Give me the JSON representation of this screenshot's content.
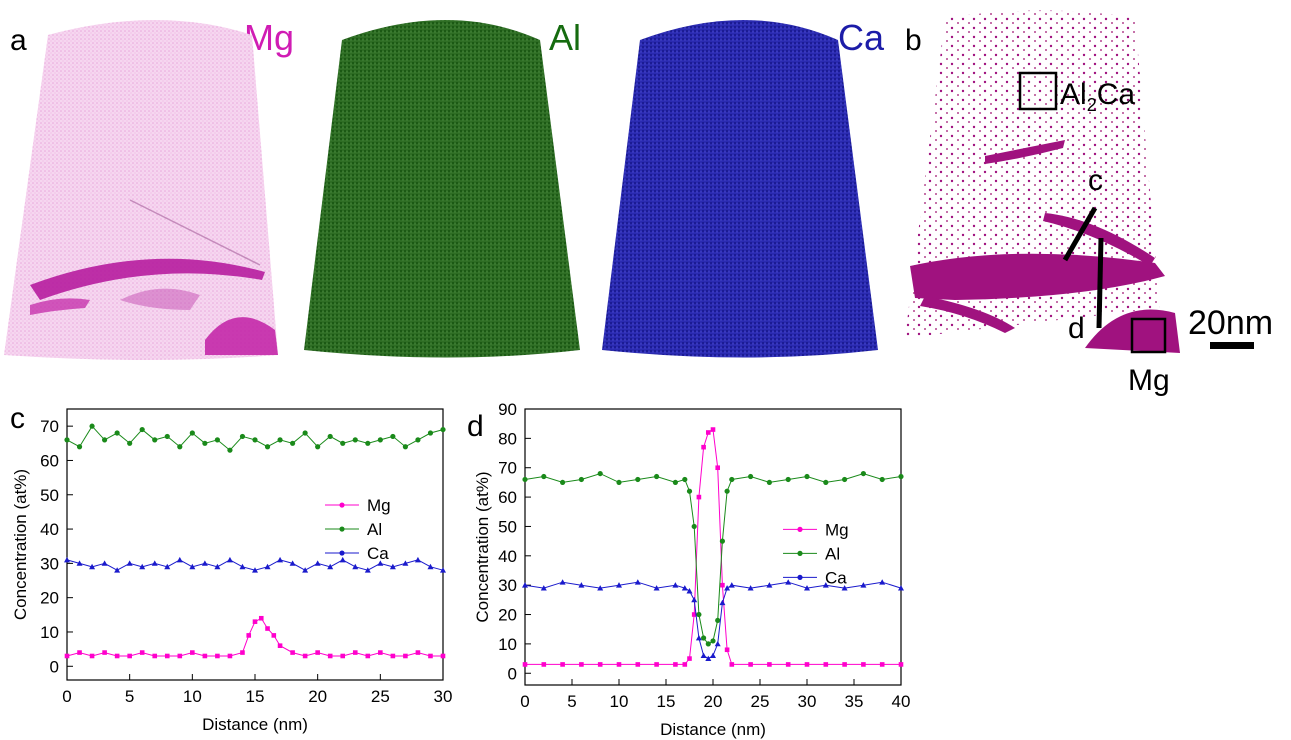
{
  "panel_labels": {
    "a": "a",
    "b": "b",
    "c": "c",
    "d": "d"
  },
  "element_maps": [
    {
      "label": "Mg",
      "color": "#d01cb4"
    },
    {
      "label": "Al",
      "color": "#156b0f"
    },
    {
      "label": "Ca",
      "color": "#1c1ca8"
    }
  ],
  "panel_b": {
    "precipitate_prefix": "Al",
    "precipitate_sub": "2",
    "precipitate_suffix": "Ca",
    "line_c": "c",
    "line_d": "d",
    "scale_bar": "20nm",
    "matrix_label": "Mg",
    "color": "#a0127f"
  },
  "series_colors": {
    "Mg": "#ff00cc",
    "Al": "#1a8a1a",
    "Ca": "#1a1acc"
  },
  "chart_data": [
    {
      "type": "line",
      "panel": "c",
      "xlabel": "Distance (nm)",
      "ylabel": "Concentration (at%)",
      "xlim": [
        0,
        30
      ],
      "ylim": [
        -4,
        75
      ],
      "xticks": [
        0,
        5,
        10,
        15,
        20,
        25,
        30
      ],
      "yticks": [
        0,
        10,
        20,
        30,
        40,
        50,
        60,
        70
      ],
      "legend": "right-middle",
      "series": [
        {
          "name": "Mg",
          "x": [
            0,
            1,
            2,
            3,
            4,
            5,
            6,
            7,
            8,
            9,
            10,
            11,
            12,
            13,
            14,
            14.5,
            15,
            15.5,
            16,
            16.5,
            17,
            18,
            19,
            20,
            21,
            22,
            23,
            24,
            25,
            26,
            27,
            28,
            29,
            30
          ],
          "y": [
            3,
            4,
            3,
            4,
            3,
            3,
            4,
            3,
            3,
            3,
            4,
            3,
            3,
            3,
            4,
            9,
            13,
            14,
            11,
            9,
            6,
            4,
            3,
            4,
            3,
            3,
            4,
            3,
            4,
            3,
            3,
            4,
            3,
            3
          ]
        },
        {
          "name": "Al",
          "x": [
            0,
            1,
            2,
            3,
            4,
            5,
            6,
            7,
            8,
            9,
            10,
            11,
            12,
            13,
            14,
            15,
            16,
            17,
            18,
            19,
            20,
            21,
            22,
            23,
            24,
            25,
            26,
            27,
            28,
            29,
            30
          ],
          "y": [
            66,
            64,
            70,
            66,
            68,
            65,
            69,
            66,
            67,
            64,
            68,
            65,
            66,
            63,
            67,
            66,
            64,
            66,
            65,
            68,
            64,
            67,
            65,
            66,
            65,
            66,
            67,
            64,
            66,
            68,
            69
          ]
        },
        {
          "name": "Ca",
          "x": [
            0,
            1,
            2,
            3,
            4,
            5,
            6,
            7,
            8,
            9,
            10,
            11,
            12,
            13,
            14,
            15,
            16,
            17,
            18,
            19,
            20,
            21,
            22,
            23,
            24,
            25,
            26,
            27,
            28,
            29,
            30
          ],
          "y": [
            31,
            30,
            29,
            30,
            28,
            30,
            29,
            30,
            29,
            31,
            29,
            30,
            29,
            31,
            29,
            28,
            29,
            31,
            30,
            28,
            30,
            29,
            31,
            29,
            28,
            30,
            29,
            30,
            31,
            29,
            28
          ]
        }
      ]
    },
    {
      "type": "line",
      "panel": "d",
      "xlabel": "Distance (nm)",
      "ylabel": "Concentration (at%)",
      "xlim": [
        0,
        40
      ],
      "ylim": [
        -4,
        90
      ],
      "xticks": [
        0,
        5,
        10,
        15,
        20,
        25,
        30,
        35,
        40
      ],
      "yticks": [
        0,
        10,
        20,
        30,
        40,
        50,
        60,
        70,
        80,
        90
      ],
      "legend": "right-middle",
      "series": [
        {
          "name": "Mg",
          "x": [
            0,
            2,
            4,
            6,
            8,
            10,
            12,
            14,
            16,
            17,
            17.5,
            18,
            18.5,
            19,
            19.5,
            20,
            20.5,
            21,
            21.5,
            22,
            24,
            26,
            28,
            30,
            32,
            34,
            36,
            38,
            40
          ],
          "y": [
            3,
            3,
            3,
            3,
            3,
            3,
            3,
            3,
            3,
            3,
            5,
            20,
            60,
            77,
            82,
            83,
            70,
            30,
            8,
            3,
            3,
            3,
            3,
            3,
            3,
            3,
            3,
            3,
            3
          ]
        },
        {
          "name": "Al",
          "x": [
            0,
            2,
            4,
            6,
            8,
            10,
            12,
            14,
            16,
            17,
            17.5,
            18,
            18.5,
            19,
            19.5,
            20,
            20.5,
            21,
            21.5,
            22,
            24,
            26,
            28,
            30,
            32,
            34,
            36,
            38,
            40
          ],
          "y": [
            66,
            67,
            65,
            66,
            68,
            65,
            66,
            67,
            65,
            66,
            62,
            50,
            20,
            12,
            10,
            11,
            18,
            45,
            62,
            66,
            67,
            65,
            66,
            67,
            65,
            66,
            68,
            66,
            67
          ]
        },
        {
          "name": "Ca",
          "x": [
            0,
            2,
            4,
            6,
            8,
            10,
            12,
            14,
            16,
            17,
            17.5,
            18,
            18.5,
            19,
            19.5,
            20,
            20.5,
            21,
            21.5,
            22,
            24,
            26,
            28,
            30,
            32,
            34,
            36,
            38,
            40
          ],
          "y": [
            30,
            29,
            31,
            30,
            29,
            30,
            31,
            29,
            30,
            29,
            28,
            25,
            12,
            6,
            5,
            6,
            10,
            24,
            29,
            30,
            29,
            30,
            31,
            29,
            30,
            29,
            30,
            31,
            29
          ]
        }
      ]
    }
  ]
}
